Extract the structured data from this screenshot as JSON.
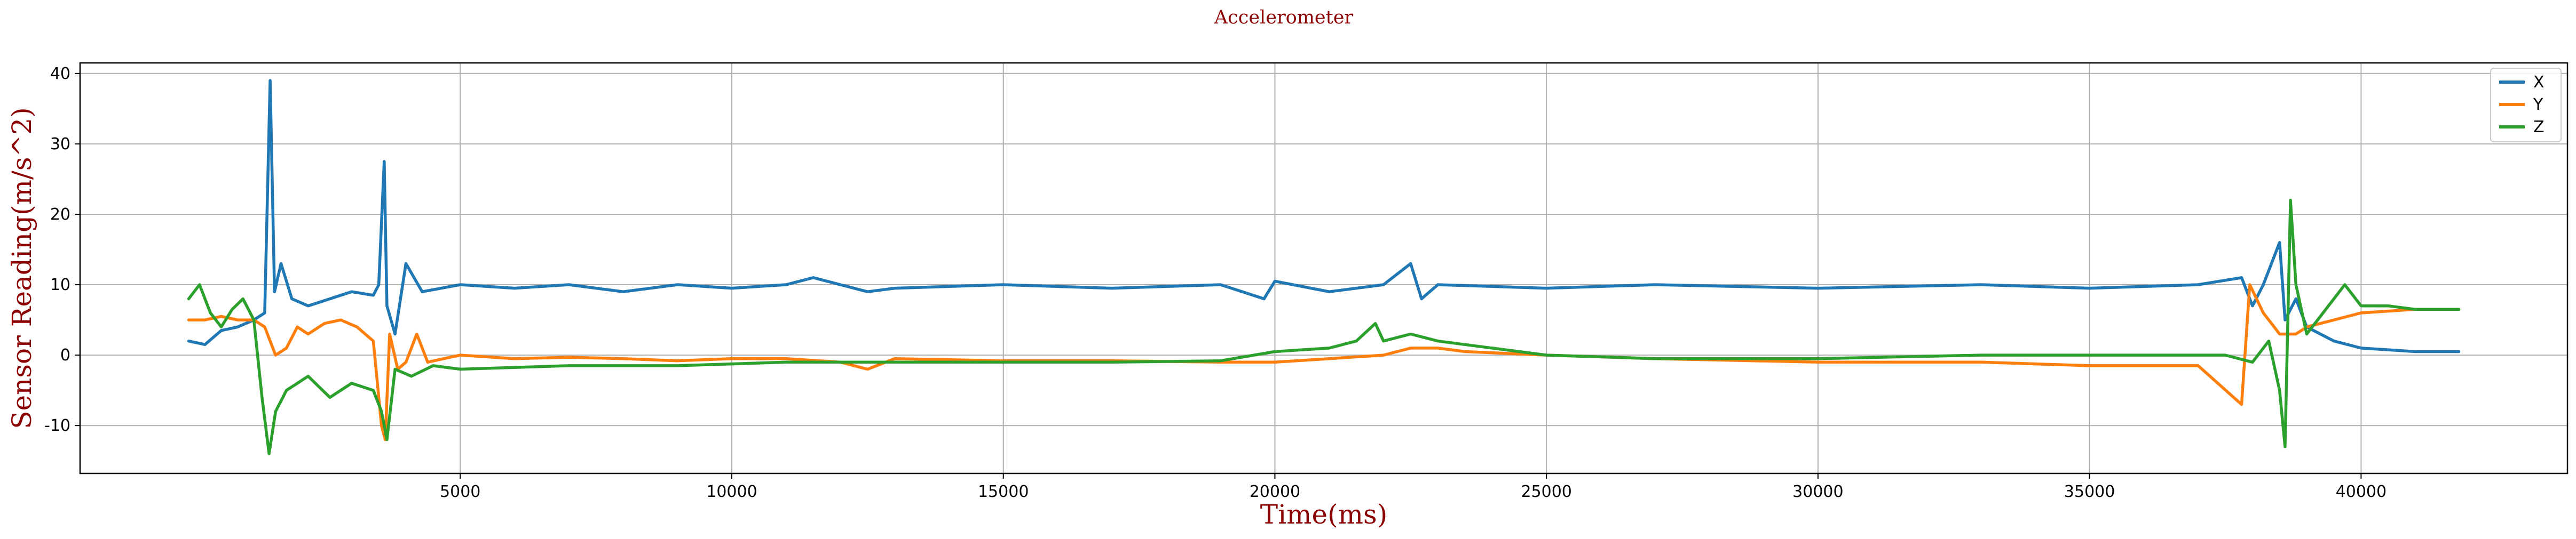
{
  "chart_data": {
    "type": "line",
    "title": "Accelerometer",
    "xlabel": "Time(ms)",
    "ylabel": "Sensor Reading(m/s^2)",
    "xlim": [
      -2000,
      43800
    ],
    "ylim": [
      -16.8,
      41.5
    ],
    "xticks": [
      5000,
      10000,
      15000,
      20000,
      25000,
      30000,
      35000,
      40000
    ],
    "yticks": [
      -10,
      0,
      10,
      20,
      30,
      40
    ],
    "grid": true,
    "legend_position": "top-right",
    "series": [
      {
        "name": "X",
        "color": "#1f77b4",
        "points": [
          [
            0,
            2
          ],
          [
            300,
            1.5
          ],
          [
            600,
            3.5
          ],
          [
            900,
            4
          ],
          [
            1200,
            5
          ],
          [
            1400,
            6
          ],
          [
            1500,
            39
          ],
          [
            1580,
            9
          ],
          [
            1700,
            13
          ],
          [
            1900,
            8
          ],
          [
            2200,
            7
          ],
          [
            2600,
            8
          ],
          [
            3000,
            9
          ],
          [
            3400,
            8.5
          ],
          [
            3500,
            10
          ],
          [
            3600,
            27.5
          ],
          [
            3650,
            7
          ],
          [
            3800,
            3
          ],
          [
            4000,
            13
          ],
          [
            4300,
            9
          ],
          [
            5000,
            10
          ],
          [
            6000,
            9.5
          ],
          [
            7000,
            10
          ],
          [
            8000,
            9
          ],
          [
            9000,
            10
          ],
          [
            10000,
            9.5
          ],
          [
            11000,
            10
          ],
          [
            11500,
            11
          ],
          [
            12000,
            10
          ],
          [
            12500,
            9
          ],
          [
            13000,
            9.5
          ],
          [
            15000,
            10
          ],
          [
            17000,
            9.5
          ],
          [
            19000,
            10
          ],
          [
            19800,
            8
          ],
          [
            20000,
            10.5
          ],
          [
            21000,
            9
          ],
          [
            22000,
            10
          ],
          [
            22500,
            13
          ],
          [
            22700,
            8
          ],
          [
            23000,
            10
          ],
          [
            25000,
            9.5
          ],
          [
            27000,
            10
          ],
          [
            30000,
            9.5
          ],
          [
            33000,
            10
          ],
          [
            35000,
            9.5
          ],
          [
            37000,
            10
          ],
          [
            37800,
            11
          ],
          [
            38000,
            7
          ],
          [
            38200,
            10
          ],
          [
            38500,
            16
          ],
          [
            38600,
            5
          ],
          [
            38800,
            8
          ],
          [
            39000,
            4
          ],
          [
            39500,
            2
          ],
          [
            40000,
            1
          ],
          [
            41000,
            0.5
          ],
          [
            41800,
            0.5
          ]
        ]
      },
      {
        "name": "Y",
        "color": "#ff7f0e",
        "points": [
          [
            0,
            5
          ],
          [
            300,
            5
          ],
          [
            600,
            5.5
          ],
          [
            900,
            5
          ],
          [
            1200,
            5
          ],
          [
            1400,
            4
          ],
          [
            1600,
            0
          ],
          [
            1800,
            1
          ],
          [
            2000,
            4
          ],
          [
            2200,
            3
          ],
          [
            2500,
            4.5
          ],
          [
            2800,
            5
          ],
          [
            3100,
            4
          ],
          [
            3400,
            2
          ],
          [
            3550,
            -10
          ],
          [
            3620,
            -12
          ],
          [
            3700,
            3
          ],
          [
            3850,
            -2
          ],
          [
            4000,
            -1
          ],
          [
            4200,
            3
          ],
          [
            4400,
            -1
          ],
          [
            5000,
            0
          ],
          [
            6000,
            -0.5
          ],
          [
            7000,
            -0.3
          ],
          [
            8000,
            -0.5
          ],
          [
            9000,
            -0.8
          ],
          [
            10000,
            -0.5
          ],
          [
            11000,
            -0.5
          ],
          [
            12000,
            -1
          ],
          [
            12500,
            -2
          ],
          [
            13000,
            -0.5
          ],
          [
            15000,
            -0.8
          ],
          [
            17000,
            -0.8
          ],
          [
            19000,
            -1
          ],
          [
            20000,
            -1
          ],
          [
            21000,
            -0.5
          ],
          [
            22000,
            0
          ],
          [
            22500,
            1
          ],
          [
            23000,
            1
          ],
          [
            23500,
            0.5
          ],
          [
            25000,
            0
          ],
          [
            27000,
            -0.5
          ],
          [
            30000,
            -1
          ],
          [
            33000,
            -1
          ],
          [
            35000,
            -1.5
          ],
          [
            37000,
            -1.5
          ],
          [
            37800,
            -7
          ],
          [
            37950,
            10
          ],
          [
            38200,
            6
          ],
          [
            38500,
            3
          ],
          [
            38800,
            3
          ],
          [
            39000,
            4
          ],
          [
            39500,
            5
          ],
          [
            40000,
            6
          ],
          [
            41000,
            6.5
          ],
          [
            41800,
            6.5
          ]
        ]
      },
      {
        "name": "Z",
        "color": "#2ca02c",
        "points": [
          [
            0,
            8
          ],
          [
            200,
            10
          ],
          [
            400,
            6
          ],
          [
            600,
            4
          ],
          [
            800,
            6.5
          ],
          [
            1000,
            8
          ],
          [
            1200,
            5
          ],
          [
            1350,
            -6
          ],
          [
            1480,
            -14
          ],
          [
            1600,
            -8
          ],
          [
            1800,
            -5
          ],
          [
            2200,
            -3
          ],
          [
            2600,
            -6
          ],
          [
            3000,
            -4
          ],
          [
            3400,
            -5
          ],
          [
            3550,
            -8
          ],
          [
            3650,
            -12
          ],
          [
            3800,
            -2
          ],
          [
            4100,
            -3
          ],
          [
            4500,
            -1.5
          ],
          [
            5000,
            -2
          ],
          [
            7000,
            -1.5
          ],
          [
            9000,
            -1.5
          ],
          [
            11000,
            -1
          ],
          [
            13000,
            -1
          ],
          [
            15000,
            -1
          ],
          [
            17000,
            -1
          ],
          [
            19000,
            -0.8
          ],
          [
            20000,
            0.5
          ],
          [
            21000,
            1
          ],
          [
            21500,
            2
          ],
          [
            21850,
            4.5
          ],
          [
            22000,
            2
          ],
          [
            22500,
            3
          ],
          [
            23000,
            2
          ],
          [
            23500,
            1.5
          ],
          [
            24000,
            1
          ],
          [
            25000,
            0
          ],
          [
            27000,
            -0.5
          ],
          [
            30000,
            -0.5
          ],
          [
            33000,
            0
          ],
          [
            35000,
            0
          ],
          [
            37000,
            0
          ],
          [
            37500,
            0
          ],
          [
            38000,
            -1
          ],
          [
            38300,
            2
          ],
          [
            38500,
            -5
          ],
          [
            38600,
            -13
          ],
          [
            38700,
            22
          ],
          [
            38800,
            10
          ],
          [
            39000,
            3
          ],
          [
            39300,
            6
          ],
          [
            39700,
            10
          ],
          [
            40000,
            7
          ],
          [
            40500,
            7
          ],
          [
            41000,
            6.5
          ],
          [
            41800,
            6.5
          ]
        ]
      }
    ]
  }
}
